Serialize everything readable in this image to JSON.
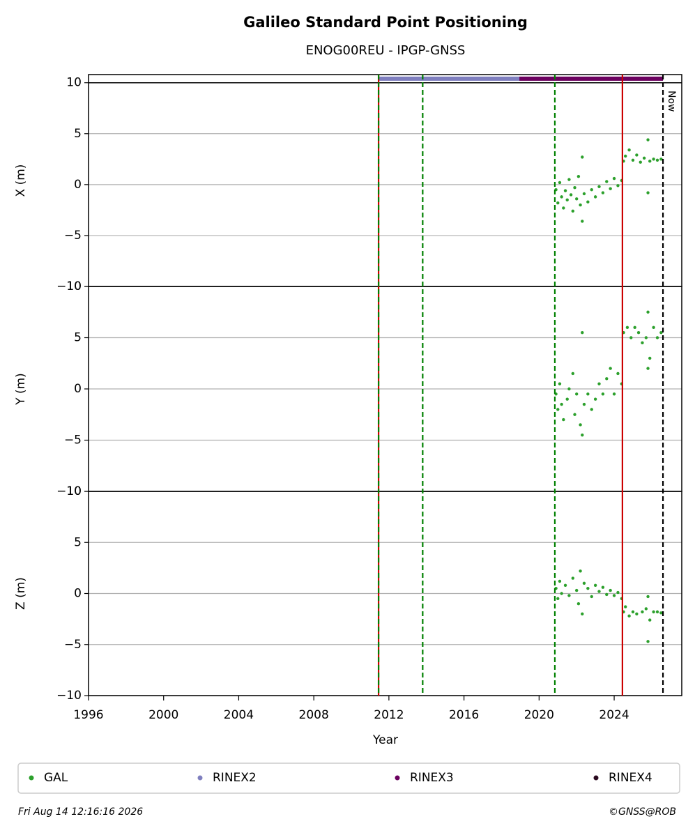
{
  "chart_data": [
    {
      "type": "scatter",
      "title": "Galileo Standard Point Positioning",
      "subtitle": "ENOG00REU - IPGP-GNSS",
      "ylabel": "X (m)",
      "ylim": [
        -10,
        10.8
      ],
      "yticks": [
        {
          "value": -10,
          "label": "−10"
        },
        {
          "value": -5,
          "label": "−5"
        },
        0,
        5,
        10
      ],
      "grid": true,
      "hline": 10,
      "coverage": [
        {
          "color": "#7f7fbf",
          "x": [
            2011.45,
            2018.95
          ],
          "y": 10.4
        },
        {
          "color": "#6b005f",
          "x": [
            2018.95,
            2026.6
          ],
          "y": 10.4
        }
      ],
      "series": [
        {
          "name": "GAL",
          "color": "#2ca02c",
          "x": [
            2020.9,
            2021.0,
            2021.1,
            2021.2,
            2021.3,
            2021.4,
            2021.5,
            2021.6,
            2021.7,
            2021.8,
            2021.9,
            2022.0,
            2022.1,
            2022.2,
            2022.3,
            2022.3,
            2022.4,
            2022.6,
            2022.8,
            2023.0,
            2023.2,
            2023.4,
            2023.6,
            2023.8,
            2024.0,
            2024.2,
            2024.4,
            2024.5,
            2024.6,
            2024.8,
            2025.0,
            2025.2,
            2025.4,
            2025.6,
            2025.8,
            2025.8,
            2025.9,
            2026.1,
            2026.3,
            2026.5
          ],
          "values": [
            -0.5,
            -1.8,
            0.2,
            -1.2,
            -2.3,
            -0.6,
            -1.5,
            0.5,
            -1.0,
            -2.6,
            -0.3,
            -1.4,
            0.8,
            -2.0,
            -3.6,
            2.7,
            -0.9,
            -1.7,
            -0.5,
            -1.2,
            -0.2,
            -0.8,
            0.3,
            -0.4,
            0.6,
            -0.1,
            0.4,
            2.3,
            2.8,
            3.4,
            2.4,
            2.9,
            2.2,
            2.6,
            4.4,
            -0.8,
            2.3,
            2.5,
            2.4,
            2.5
          ]
        }
      ]
    },
    {
      "type": "scatter",
      "ylabel": "Y (m)",
      "ylim": [
        -10,
        10
      ],
      "yticks": [
        {
          "value": -10,
          "label": "−10"
        },
        {
          "value": -5,
          "label": "−5"
        },
        0,
        5,
        10
      ],
      "grid": true,
      "series": [
        {
          "name": "GAL",
          "color": "#2ca02c",
          "x": [
            2020.9,
            2021.0,
            2021.1,
            2021.2,
            2021.3,
            2021.5,
            2021.6,
            2021.8,
            2021.9,
            2022.0,
            2022.2,
            2022.3,
            2022.3,
            2022.4,
            2022.6,
            2022.8,
            2023.0,
            2023.2,
            2023.4,
            2023.6,
            2023.8,
            2024.0,
            2024.2,
            2024.4,
            2024.5,
            2024.7,
            2024.9,
            2025.1,
            2025.3,
            2025.5,
            2025.7,
            2025.8,
            2025.8,
            2025.9,
            2026.1,
            2026.3,
            2026.5
          ],
          "values": [
            -0.5,
            -2.0,
            0.5,
            -1.5,
            -3.0,
            -1.0,
            0,
            1.5,
            -2.5,
            -0.5,
            -3.5,
            5.5,
            -4.5,
            -1.5,
            -0.5,
            -2.0,
            -1.0,
            0.5,
            -0.5,
            1.0,
            2.0,
            -0.5,
            1.5,
            0.5,
            5.5,
            6.0,
            5.0,
            6.0,
            5.5,
            4.5,
            5.0,
            2.0,
            7.5,
            3.0,
            6.0,
            5.0,
            5.5
          ]
        }
      ]
    },
    {
      "type": "scatter",
      "ylabel": "Z (m)",
      "ylim": [
        -10,
        10
      ],
      "yticks": [
        {
          "value": -10,
          "label": "−10"
        },
        {
          "value": -5,
          "label": "−5"
        },
        0,
        5,
        10
      ],
      "grid": true,
      "xlabel": "Year",
      "xlim": [
        1996,
        2027.6
      ],
      "xticks": [
        1996,
        2000,
        2004,
        2008,
        2012,
        2016,
        2020,
        2024
      ],
      "series": [
        {
          "name": "GAL",
          "color": "#2ca02c",
          "x": [
            2020.9,
            2021.0,
            2021.1,
            2021.2,
            2021.4,
            2021.6,
            2021.8,
            2022.0,
            2022.1,
            2022.2,
            2022.3,
            2022.4,
            2022.6,
            2022.8,
            2023.0,
            2023.2,
            2023.4,
            2023.6,
            2023.8,
            2024.0,
            2024.2,
            2024.4,
            2024.5,
            2024.6,
            2024.8,
            2025.0,
            2025.2,
            2025.5,
            2025.7,
            2025.8,
            2025.8,
            2025.9,
            2026.1,
            2026.3,
            2026.5
          ],
          "values": [
            0.5,
            -0.5,
            1.2,
            0,
            0.8,
            -0.2,
            1.5,
            0.3,
            -1.0,
            2.2,
            -2.0,
            1.0,
            0.5,
            -0.3,
            0.8,
            0.2,
            0.6,
            -0.1,
            0.3,
            -0.2,
            0.1,
            -0.5,
            -1.8,
            -1.3,
            -2.2,
            -1.8,
            -2.0,
            -1.8,
            -1.5,
            -4.7,
            -0.3,
            -2.6,
            -1.8,
            -1.8,
            -1.9
          ]
        }
      ]
    }
  ],
  "markers": [
    {
      "x": 2011.45,
      "color": "#cc0000",
      "style": "solid"
    },
    {
      "x": 2011.45,
      "color": "#008000",
      "style": "dashed"
    },
    {
      "x": 2013.8,
      "color": "#008000",
      "style": "dashed"
    },
    {
      "x": 2020.84,
      "color": "#008000",
      "style": "dashed"
    },
    {
      "x": 2024.44,
      "color": "#cc0000",
      "style": "solid"
    },
    {
      "x": 2026.6,
      "color": "#000000",
      "style": "dashed",
      "label": "Now"
    }
  ],
  "legend": [
    {
      "name": "GAL",
      "color": "#2ca02c"
    },
    {
      "name": "RINEX2",
      "color": "#7f7fbf"
    },
    {
      "name": "RINEX3",
      "color": "#6b005f"
    },
    {
      "name": "RINEX4",
      "color": "#2b0a1f"
    }
  ],
  "footer": {
    "date": "Fri Aug 14 12:16:16 2026",
    "credit": "©GNSS@ROB"
  }
}
